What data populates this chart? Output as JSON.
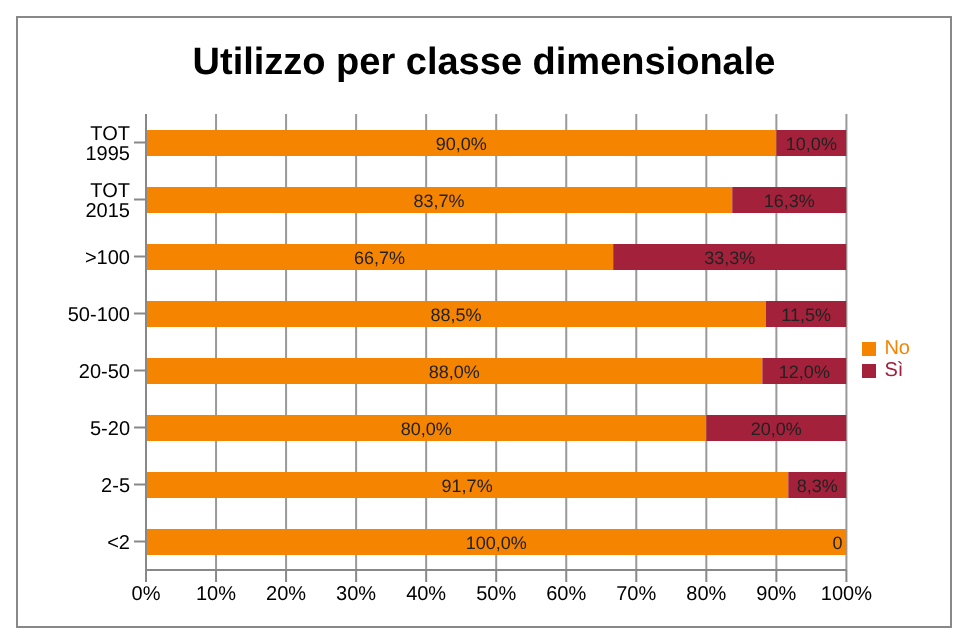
{
  "chart_data": {
    "type": "bar",
    "orientation": "horizontal",
    "stacked": true,
    "title": "Utilizzo per classe dimensionale",
    "categories": [
      "TOT 1995",
      "TOT 2015",
      ">100",
      "50-100",
      "20-50",
      "5-20",
      "2-5",
      "<2"
    ],
    "series": [
      {
        "name": "No",
        "color": "#f58400",
        "values": [
          90.0,
          83.7,
          66.7,
          88.5,
          88.0,
          80.0,
          91.7,
          100.0
        ],
        "value_labels": [
          "90,0%",
          "83,7%",
          "66,7%",
          "88,5%",
          "88,0%",
          "80,0%",
          "91,7%",
          "100,0%"
        ]
      },
      {
        "name": "Sì",
        "color": "#a3213a",
        "values": [
          10.0,
          16.3,
          33.3,
          11.5,
          12.0,
          20.0,
          8.3,
          0
        ],
        "value_labels": [
          "10,0%",
          "16,3%",
          "33,3%",
          "11,5%",
          "12,0%",
          "20,0%",
          "8,3%",
          "0"
        ]
      }
    ],
    "xlim": [
      0,
      100
    ],
    "xticks": [
      {
        "value": 0,
        "label": "0%"
      },
      {
        "value": 10,
        "label": "10%"
      },
      {
        "value": 20,
        "label": "20%"
      },
      {
        "value": 30,
        "label": "30%"
      },
      {
        "value": 40,
        "label": "40%"
      },
      {
        "value": 50,
        "label": "50%"
      },
      {
        "value": 60,
        "label": "60%"
      },
      {
        "value": 70,
        "label": "70%"
      },
      {
        "value": 80,
        "label": "80%"
      },
      {
        "value": 90,
        "label": "90%"
      },
      {
        "value": 100,
        "label": "100%"
      }
    ],
    "grid": "x",
    "legend": "right"
  }
}
